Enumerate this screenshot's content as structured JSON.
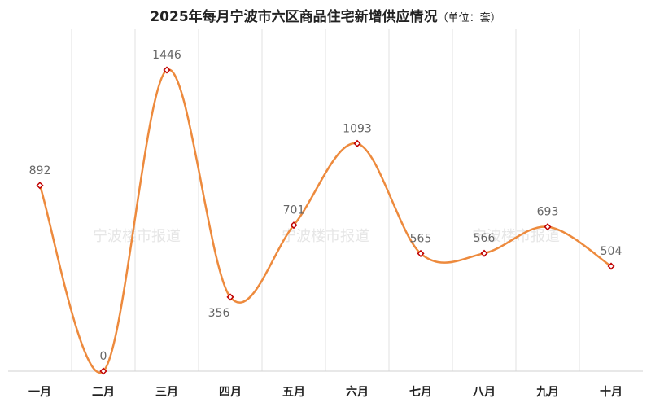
{
  "chart_data": {
    "type": "line",
    "title": "2025年每月宁波市六区商品住宅新增供应情况",
    "unit_note": "（单位：套）",
    "categories": [
      "一月",
      "二月",
      "三月",
      "四月",
      "五月",
      "六月",
      "七月",
      "八月",
      "九月",
      "十月"
    ],
    "series": [
      {
        "values": [
          892,
          0,
          1446,
          356,
          701,
          1093,
          565,
          566,
          693,
          504
        ]
      }
    ],
    "ylim": [
      0,
      1550
    ],
    "smooth": true,
    "grid": "vertical",
    "data_labels": true
  },
  "watermark": "宁波楼市报道",
  "colors": {
    "line": "#ED8A3D",
    "marker_fill": "#ffffff",
    "marker_stroke": "#C00000",
    "grid": "#E2E2E2",
    "axis": "#D0D0D0",
    "label": "#666666",
    "title": "#222222",
    "watermark": "#E6E6E6"
  }
}
